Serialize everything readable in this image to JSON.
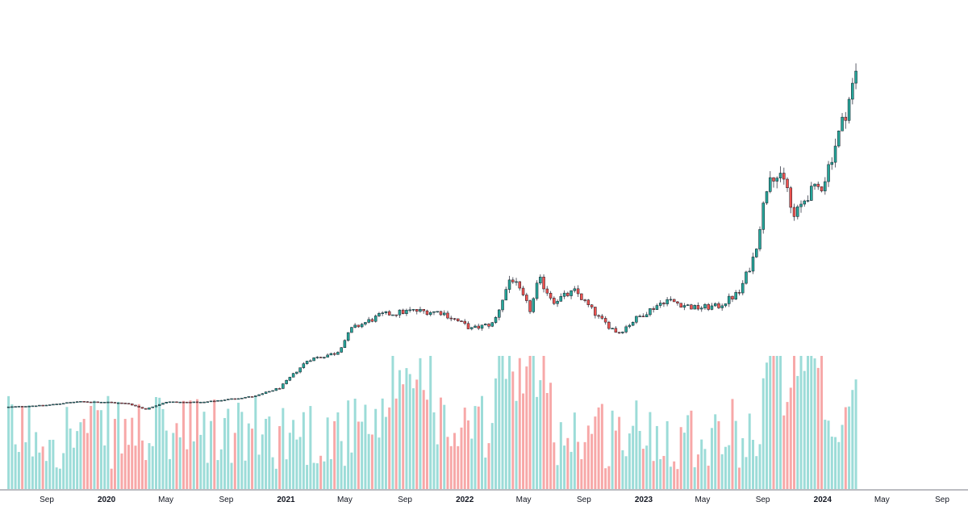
{
  "chart_data": {
    "type": "candlestick",
    "interval": "weekly",
    "grid": false,
    "legend": "none",
    "x_axis_ticks": [
      {
        "label": "Sep",
        "date": "2019-09-01",
        "year": false
      },
      {
        "label": "2020",
        "date": "2020-01-01",
        "year": true
      },
      {
        "label": "May",
        "date": "2020-05-01",
        "year": false
      },
      {
        "label": "Sep",
        "date": "2020-09-01",
        "year": false
      },
      {
        "label": "2021",
        "date": "2021-01-01",
        "year": true
      },
      {
        "label": "May",
        "date": "2021-05-01",
        "year": false
      },
      {
        "label": "Sep",
        "date": "2021-09-01",
        "year": false
      },
      {
        "label": "2022",
        "date": "2022-01-01",
        "year": true
      },
      {
        "label": "May",
        "date": "2022-05-01",
        "year": false
      },
      {
        "label": "Sep",
        "date": "2022-09-01",
        "year": false
      },
      {
        "label": "2023",
        "date": "2023-01-01",
        "year": true
      },
      {
        "label": "May",
        "date": "2023-05-01",
        "year": false
      },
      {
        "label": "Sep",
        "date": "2023-09-01",
        "year": false
      },
      {
        "label": "2024",
        "date": "2024-01-01",
        "year": true
      },
      {
        "label": "May",
        "date": "2024-05-01",
        "year": false
      },
      {
        "label": "Sep",
        "date": "2024-09-01",
        "year": false
      }
    ],
    "anchor_points": [
      {
        "date": "2019-06-15",
        "close": 6.2
      },
      {
        "date": "2019-09-01",
        "close": 7.5
      },
      {
        "date": "2019-11-01",
        "close": 10.0
      },
      {
        "date": "2020-01-01",
        "close": 9.7
      },
      {
        "date": "2020-02-15",
        "close": 8.5
      },
      {
        "date": "2020-03-20",
        "close": 4.5
      },
      {
        "date": "2020-05-01",
        "close": 9.8
      },
      {
        "date": "2020-07-15",
        "close": 9.5
      },
      {
        "date": "2020-09-01",
        "close": 11.5
      },
      {
        "date": "2020-11-01",
        "close": 14.0
      },
      {
        "date": "2020-12-20",
        "close": 20.0
      },
      {
        "date": "2021-02-15",
        "close": 40.0
      },
      {
        "date": "2021-04-15",
        "close": 45.0
      },
      {
        "date": "2021-05-15",
        "close": 62.0
      },
      {
        "date": "2021-07-15",
        "close": 72.0
      },
      {
        "date": "2021-09-15",
        "close": 75.0
      },
      {
        "date": "2021-11-15",
        "close": 74.0
      },
      {
        "date": "2022-01-15",
        "close": 62.0
      },
      {
        "date": "2022-03-01",
        "close": 66.0
      },
      {
        "date": "2022-04-05",
        "close": 100.0
      },
      {
        "date": "2022-05-15",
        "close": 75.0
      },
      {
        "date": "2022-06-01",
        "close": 98.0
      },
      {
        "date": "2022-07-01",
        "close": 82.0
      },
      {
        "date": "2022-08-15",
        "close": 89.0
      },
      {
        "date": "2022-10-01",
        "close": 70.0
      },
      {
        "date": "2022-11-10",
        "close": 59.0
      },
      {
        "date": "2022-12-15",
        "close": 69.0
      },
      {
        "date": "2023-02-15",
        "close": 83.0
      },
      {
        "date": "2023-04-15",
        "close": 77.0
      },
      {
        "date": "2023-06-01",
        "close": 78.0
      },
      {
        "date": "2023-07-15",
        "close": 88.0
      },
      {
        "date": "2023-08-15",
        "close": 115.0
      },
      {
        "date": "2023-09-15",
        "close": 175.0
      },
      {
        "date": "2023-10-20",
        "close": 165.0
      },
      {
        "date": "2023-11-01",
        "close": 140.0
      },
      {
        "date": "2023-12-01",
        "close": 158.0
      },
      {
        "date": "2024-01-01",
        "close": 165.0
      },
      {
        "date": "2024-02-15",
        "close": 215.0
      },
      {
        "date": "2024-03-15",
        "close": 252.0
      }
    ],
    "price_range": [
      0,
      280
    ],
    "volume_note": "volume bars below price, teal = up week, red = down week"
  },
  "colors": {
    "up_candle": "#26a69a",
    "down_candle": "#ef5350",
    "wick": "#5d606b",
    "up_volume": "#9cdcd8",
    "down_volume": "#f7a8a8",
    "axis_line": "#787b86",
    "background": "#ffffff"
  }
}
